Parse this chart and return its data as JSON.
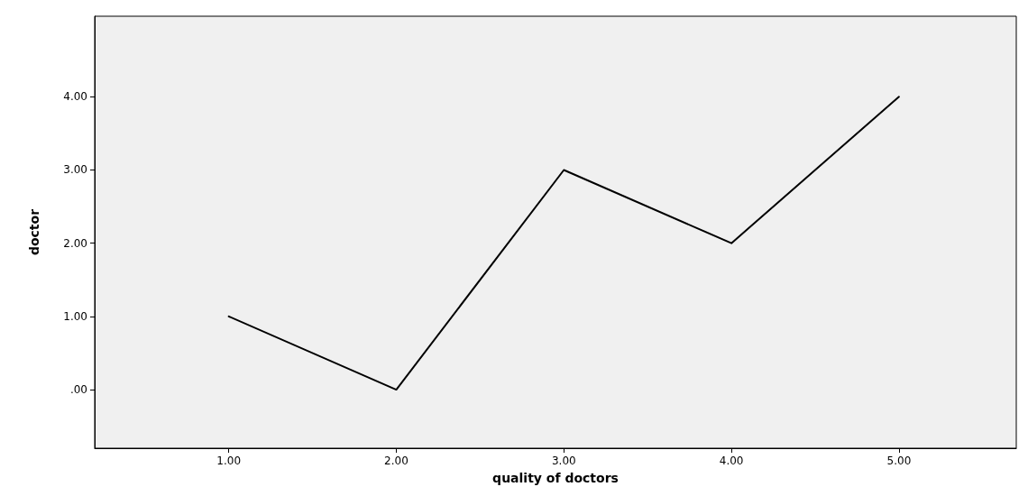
{
  "chart_data": {
    "type": "line",
    "xlabel": "quality of doctors",
    "ylabel": "doctor",
    "x": [
      1,
      2,
      3,
      4,
      5
    ],
    "series": [
      {
        "color": "#000000",
        "values": [
          1,
          0,
          3,
          2,
          4
        ]
      }
    ],
    "xlim": [
      0.2,
      5.7
    ],
    "ylim": [
      -0.8,
      5.1
    ],
    "xticks": [
      {
        "value": 1,
        "label": "1.00"
      },
      {
        "value": 2,
        "label": "2.00"
      },
      {
        "value": 3,
        "label": "3.00"
      },
      {
        "value": 4,
        "label": "4.00"
      },
      {
        "value": 5,
        "label": "5.00"
      }
    ],
    "yticks": [
      {
        "value": 0,
        "label": ".00"
      },
      {
        "value": 1,
        "label": "1.00"
      },
      {
        "value": 2,
        "label": "2.00"
      },
      {
        "value": 3,
        "label": "3.00"
      },
      {
        "value": 4,
        "label": "4.00"
      }
    ],
    "grid": false,
    "marker": "none",
    "line_style": "solid"
  }
}
